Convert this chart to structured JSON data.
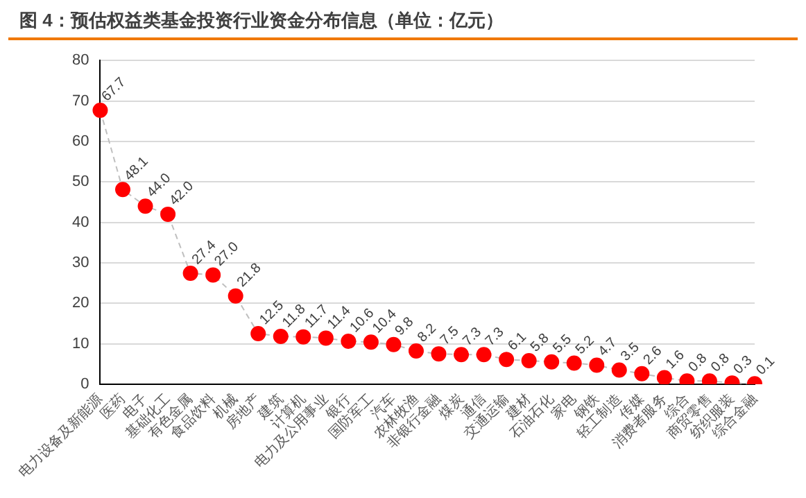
{
  "chart_data": {
    "type": "line",
    "title": "图 4：预估权益类基金投资行业资金分布信息（单位：亿元）",
    "categories": [
      "电力设备及新能源",
      "医药",
      "电子",
      "基础化工",
      "有色金属",
      "食品饮料",
      "机械",
      "房地产",
      "建筑",
      "计算机",
      "电力及公用事业",
      "银行",
      "国防军工",
      "汽车",
      "农林牧渔",
      "非银行金融",
      "煤炭",
      "通信",
      "交通运输",
      "建材",
      "石油石化",
      "家电",
      "钢铁",
      "轻工制造",
      "传媒",
      "消费者服务",
      "综合",
      "商贸零售",
      "纺织服装",
      "综合金融"
    ],
    "series": [
      {
        "color": "#ff0000",
        "values": [
          67.7,
          48.1,
          44.0,
          42.0,
          27.4,
          27.0,
          21.8,
          12.5,
          11.8,
          11.7,
          11.4,
          10.6,
          10.4,
          9.8,
          8.2,
          7.5,
          7.3,
          7.3,
          6.1,
          5.8,
          5.5,
          5.2,
          4.7,
          3.5,
          2.6,
          1.6,
          0.8,
          0.8,
          0.3,
          0.1
        ],
        "value_labels": [
          "67.7",
          "48.1",
          "44.0",
          "42.0",
          "27.4",
          "27.0",
          "21.8",
          "12.5",
          "11.8",
          "11.7",
          "11.4",
          "10.6",
          "10.4",
          "9.8",
          "8.2",
          "7.5",
          "7.3",
          "7.3",
          "6.1",
          "5.8",
          "5.5",
          "5.2",
          "4.7",
          "3.5",
          "2.6",
          "1.6",
          "0.8",
          "0.8",
          "0.3",
          "0.1"
        ]
      }
    ],
    "ylim": [
      0,
      80
    ],
    "yticks": [
      0,
      10,
      20,
      30,
      40,
      50,
      60,
      70,
      80
    ],
    "grid": "y",
    "legend": false,
    "marker": "circle",
    "line_style": "dashed"
  }
}
